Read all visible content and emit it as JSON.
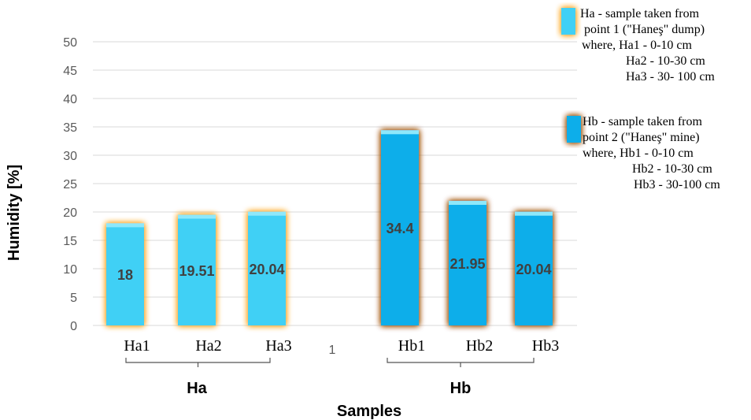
{
  "chart_data": {
    "type": "bar",
    "xlabel": "Samples",
    "ylabel": "Humidity [%]",
    "ylim": [
      0,
      50
    ],
    "yticks": [
      0,
      5,
      10,
      15,
      20,
      25,
      30,
      35,
      40,
      45,
      50
    ],
    "grid": true,
    "legend_position": "top-right",
    "gap_label": "1",
    "groups": [
      {
        "name": "Ha",
        "color": "#3fd0f5",
        "glow": "#ffa726",
        "categories": [
          "Ha1",
          "Ha2",
          "Ha3"
        ],
        "values": [
          18,
          19.51,
          20.04
        ],
        "labels": [
          "18",
          "19.51",
          "20.04"
        ]
      },
      {
        "name": "Hb",
        "color": "#0aaeea",
        "glow": "#a0520f",
        "categories": [
          "Hb1",
          "Hb2",
          "Hb3"
        ],
        "values": [
          34.4,
          21.95,
          20.04
        ],
        "labels": [
          "34.4",
          "21.95",
          "20.04"
        ]
      }
    ],
    "legend": [
      {
        "color": "#3fd0f5",
        "glow": "#ffa726",
        "lines": [
          "Ha  - sample taken from",
          "point 1 (\"Haneş\" dump)",
          "where, Ha1 - 0-10 cm",
          "Ha2 - 10-30 cm",
          "Ha3 - 30- 100 cm"
        ]
      },
      {
        "color": "#0aaeea",
        "glow": "#a0520f",
        "lines": [
          "Hb  - sample taken from",
          "point 2 (\"Haneş\" mine)",
          "where, Hb1 - 0-10 cm",
          "Hb2 - 10-30 cm",
          "Hb3 - 30-100 cm"
        ]
      }
    ]
  }
}
